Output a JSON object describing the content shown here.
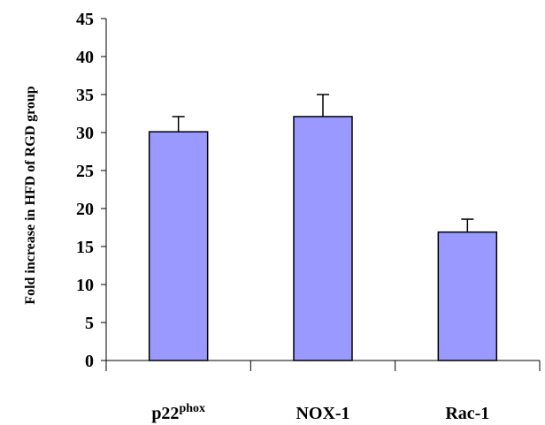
{
  "chart_data": {
    "type": "bar",
    "categories": [
      "p22phox",
      "NOX-1",
      "Rac-1"
    ],
    "category_labels": [
      {
        "base": "p22",
        "superscript": "phox"
      },
      {
        "base": "NOX-1",
        "superscript": ""
      },
      {
        "base": "Rac-1",
        "superscript": ""
      }
    ],
    "values": [
      30.1,
      32.1,
      16.9
    ],
    "error_plus": [
      2.0,
      2.9,
      1.7
    ],
    "title": "",
    "xlabel": "",
    "ylabel": "Fold increase in HFD of RGD group",
    "ylim": [
      0,
      45
    ],
    "yticks": [
      0,
      5,
      10,
      15,
      20,
      25,
      30,
      35,
      40,
      45
    ],
    "grid": false,
    "legend": "none",
    "colors": {
      "bar_fill": "#9999ff",
      "bar_stroke": "#000000",
      "axis": "#000000"
    }
  }
}
